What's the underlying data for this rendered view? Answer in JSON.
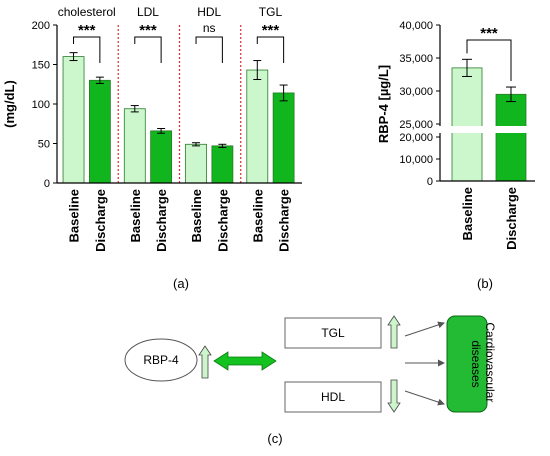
{
  "chart_data": [
    {
      "type": "bar",
      "panel_label": "(a)",
      "ylabel": "(mg/dL)",
      "ylim": [
        0,
        200
      ],
      "yticks": [
        0,
        50,
        100,
        150,
        200
      ],
      "groups": [
        {
          "label": "cholesterol",
          "categories": [
            "Baseline",
            "Discharge"
          ],
          "values": [
            160,
            130
          ],
          "errors": [
            5,
            4
          ],
          "significance": "***"
        },
        {
          "label": "LDL",
          "categories": [
            "Baseline",
            "Discharge"
          ],
          "values": [
            94,
            66
          ],
          "errors": [
            4,
            3
          ],
          "significance": "***"
        },
        {
          "label": "HDL",
          "categories": [
            "Baseline",
            "Discharge"
          ],
          "values": [
            49,
            47
          ],
          "errors": [
            2,
            2
          ],
          "significance": "ns"
        },
        {
          "label": "TGL",
          "categories": [
            "Baseline",
            "Discharge"
          ],
          "values": [
            143,
            114
          ],
          "errors": [
            12,
            10
          ],
          "significance": "***"
        }
      ],
      "colors": {
        "baseline": "#ccf7cc",
        "discharge": "#11b51d",
        "separator": "#d42f2f"
      }
    },
    {
      "type": "bar",
      "panel_label": "(b)",
      "ylabel": "RBP-4 [µg/L]",
      "broken_axis": {
        "lower": [
          0,
          20000
        ],
        "upper": [
          25000,
          40000
        ]
      },
      "yticks_lower": [
        "0",
        "10,000",
        "20,000"
      ],
      "yticks_upper": [
        "25,000",
        "30,000",
        "35,000",
        "40,000"
      ],
      "categories": [
        "Baseline",
        "Discharge"
      ],
      "values": [
        33500,
        29500
      ],
      "errors": [
        1300,
        1100
      ],
      "significance": "***"
    }
  ],
  "diagram": {
    "panel_label": "(c)",
    "nodes": {
      "rbp4": "RBP-4",
      "tgl": "TGL",
      "hdl": "HDL",
      "outcome": "Cardiovascular diseases"
    },
    "colors": {
      "outcome_fill": "#22bb33",
      "arrow_fill": "#13c21f",
      "small_arrow": "#ccf5cc"
    }
  }
}
